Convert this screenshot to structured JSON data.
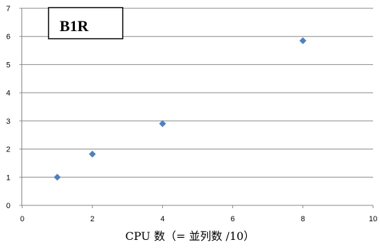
{
  "chart_data": {
    "type": "scatter",
    "title": "B1R",
    "xlabel": "CPU 数（= 並列数 /10）",
    "ylabel": "",
    "xlim": [
      0,
      10
    ],
    "ylim": [
      0,
      7
    ],
    "xticks": [
      0,
      2,
      4,
      6,
      8,
      10
    ],
    "yticks": [
      0,
      1,
      2,
      3,
      4,
      5,
      6,
      7
    ],
    "grid": "horizontal",
    "legend": "none",
    "marker": "diamond",
    "marker_color": "#4f81bd",
    "series": [
      {
        "x": [
          1,
          2,
          4,
          8
        ],
        "y": [
          1.0,
          1.82,
          2.9,
          5.85
        ]
      }
    ]
  }
}
